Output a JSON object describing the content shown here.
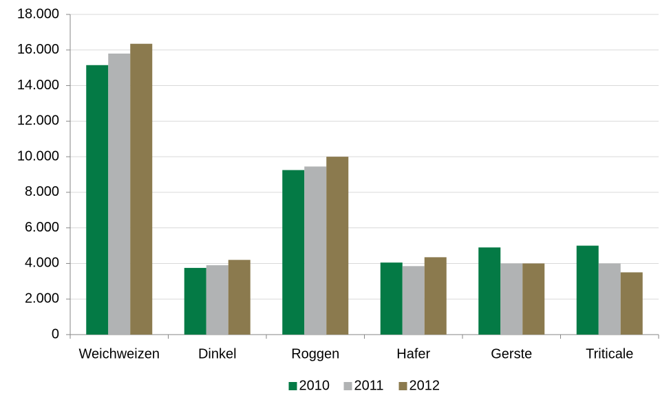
{
  "chart_data": {
    "type": "bar",
    "categories": [
      "Weichweizen",
      "Dinkel",
      "Roggen",
      "Hafer",
      "Gerste",
      "Triticale"
    ],
    "series": [
      {
        "name": "2010",
        "color": "#047a45",
        "values": [
          15150,
          3750,
          9250,
          4050,
          4900,
          5000
        ]
      },
      {
        "name": "2011",
        "color": "#b1b3b4",
        "values": [
          15800,
          3900,
          9450,
          3850,
          4000,
          4000
        ]
      },
      {
        "name": "2012",
        "color": "#8b7a4e",
        "values": [
          16350,
          4200,
          10000,
          4350,
          4000,
          3500
        ]
      }
    ],
    "ylim": [
      0,
      18000
    ],
    "yticks": [
      0,
      {
        "value": 2000,
        "label": "2.000"
      },
      {
        "value": 4000,
        "label": "4.000"
      },
      {
        "value": 6000,
        "label": "6.000"
      },
      {
        "value": 8000,
        "label": "8.000"
      },
      {
        "value": 10000,
        "label": "10.000"
      },
      {
        "value": 12000,
        "label": "12.000"
      },
      {
        "value": 14000,
        "label": "14.000"
      },
      {
        "value": 16000,
        "label": "16.000"
      },
      {
        "value": 18000,
        "label": "18.000"
      }
    ],
    "grid": true,
    "legend": "bottom"
  }
}
